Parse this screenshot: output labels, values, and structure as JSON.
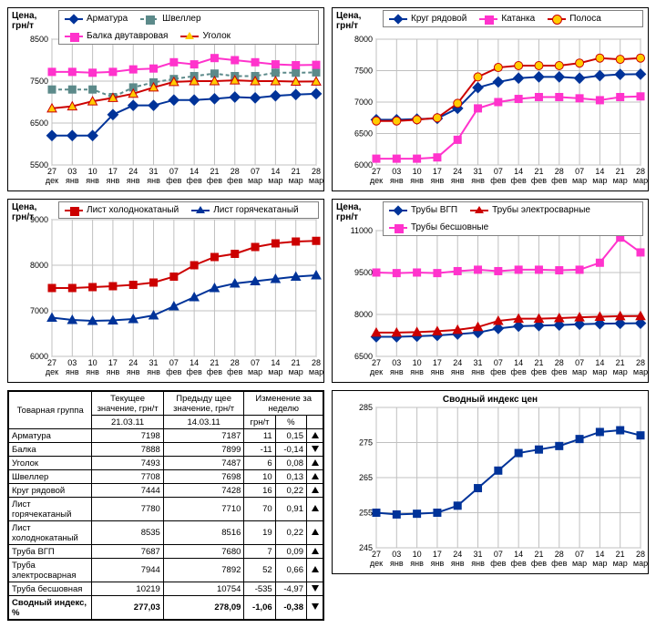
{
  "xlabels": [
    "27",
    "03",
    "10",
    "17",
    "24",
    "31",
    "07",
    "14",
    "21",
    "28",
    "07",
    "14",
    "21",
    "28"
  ],
  "xlabels2": [
    "дек",
    "янв",
    "янв",
    "янв",
    "янв",
    "янв",
    "фев",
    "фев",
    "фев",
    "фев",
    "мар",
    "мар",
    "мар",
    "мар"
  ],
  "chart1": {
    "ylabel": "Цена,\nгрн/т",
    "ylim": [
      5500,
      8500
    ],
    "yticks": [
      5500,
      6500,
      7500,
      8500
    ],
    "series": [
      {
        "name": "Арматура",
        "color": "#003399",
        "marker": "diamond",
        "values": [
          6200,
          6200,
          6200,
          6700,
          6920,
          6920,
          7050,
          7050,
          7080,
          7120,
          7100,
          7150,
          7180,
          7198
        ]
      },
      {
        "name": "Швеллер",
        "color": "#5c8a8a",
        "marker": "square",
        "dash": true,
        "values": [
          7300,
          7300,
          7300,
          7120,
          7350,
          7470,
          7550,
          7620,
          7680,
          7620,
          7620,
          7700,
          7700,
          7708
        ]
      },
      {
        "name": "Балка двутавровая",
        "color": "#ff33cc",
        "marker": "square",
        "values": [
          7720,
          7720,
          7700,
          7720,
          7780,
          7800,
          7950,
          7900,
          8050,
          8000,
          7950,
          7900,
          7880,
          7888
        ]
      },
      {
        "name": "Уголок",
        "color": "#cc0000",
        "marker": "triangle",
        "mfill": "#ffcc00",
        "values": [
          6850,
          6900,
          7020,
          7100,
          7200,
          7350,
          7480,
          7500,
          7500,
          7520,
          7500,
          7500,
          7490,
          7493
        ]
      }
    ]
  },
  "chart2": {
    "ylabel": "Цена,\nгрн/т",
    "ylim": [
      6000,
      8000
    ],
    "yticks": [
      6000,
      6500,
      7000,
      7500,
      8000
    ],
    "series": [
      {
        "name": "Круг рядовой",
        "color": "#003399",
        "marker": "diamond",
        "values": [
          6720,
          6720,
          6730,
          6740,
          6900,
          7230,
          7320,
          7380,
          7400,
          7400,
          7380,
          7420,
          7440,
          7444
        ]
      },
      {
        "name": "Катанка",
        "color": "#ff33cc",
        "marker": "square",
        "values": [
          6100,
          6100,
          6100,
          6120,
          6400,
          6900,
          7000,
          7050,
          7080,
          7080,
          7060,
          7030,
          7080,
          7090
        ]
      },
      {
        "name": "Полоса",
        "color": "#cc0000",
        "marker": "circle",
        "mfill": "#ffcc00",
        "values": [
          6700,
          6700,
          6720,
          6750,
          6980,
          7400,
          7550,
          7580,
          7580,
          7580,
          7620,
          7700,
          7680,
          7700
        ]
      }
    ]
  },
  "chart3": {
    "ylabel": "Цена,\nгрн/т",
    "ylim": [
      6000,
      9000
    ],
    "yticks": [
      6000,
      7000,
      8000,
      9000
    ],
    "series": [
      {
        "name": "Лист холоднокатаный",
        "color": "#cc0000",
        "marker": "square",
        "values": [
          7500,
          7500,
          7520,
          7540,
          7570,
          7620,
          7750,
          8000,
          8180,
          8250,
          8400,
          8480,
          8520,
          8535
        ]
      },
      {
        "name": "Лист горячекатаный",
        "color": "#003399",
        "marker": "triangle",
        "values": [
          6850,
          6800,
          6780,
          6790,
          6820,
          6900,
          7100,
          7300,
          7500,
          7600,
          7650,
          7700,
          7750,
          7780
        ]
      }
    ]
  },
  "chart4": {
    "ylabel": "Цена,\nгрн/т",
    "ylim": [
      6500,
      11000
    ],
    "yticks": [
      6500,
      8000,
      9500,
      11000
    ],
    "series": [
      {
        "name": "Трубы ВГП",
        "color": "#003399",
        "marker": "diamond",
        "values": [
          7200,
          7200,
          7220,
          7250,
          7300,
          7350,
          7500,
          7580,
          7600,
          7620,
          7650,
          7670,
          7680,
          7687
        ]
      },
      {
        "name": "Трубы электросварные",
        "color": "#cc0000",
        "marker": "triangle",
        "values": [
          7350,
          7350,
          7370,
          7400,
          7450,
          7550,
          7770,
          7850,
          7850,
          7870,
          7900,
          7920,
          7940,
          7944
        ]
      },
      {
        "name": "Трубы бесшовные",
        "color": "#ff33cc",
        "marker": "square",
        "values": [
          9500,
          9480,
          9500,
          9480,
          9550,
          9600,
          9550,
          9600,
          9600,
          9580,
          9600,
          9850,
          10750,
          10219
        ]
      }
    ]
  },
  "chart6": {
    "title": "Сводный индекс цен",
    "ylim": [
      245,
      285
    ],
    "yticks": [
      245,
      255,
      265,
      275,
      285
    ],
    "series": [
      {
        "name": "index",
        "color": "#003399",
        "marker": "square",
        "values": [
          255,
          254.5,
          254.7,
          255,
          257,
          262,
          267,
          272,
          273,
          274,
          276,
          278,
          278.5,
          277.03
        ]
      }
    ]
  },
  "table": {
    "headers": {
      "c1": "Товарная группа",
      "c2": "Текущее значение, грн/т",
      "c3": "Предыду щее значение, грн/т",
      "c4": "Изменение за неделю"
    },
    "subheaders": {
      "d1": "21.03.11",
      "d2": "14.03.11",
      "d3": "грн/т",
      "d4": "%"
    },
    "rows": [
      {
        "name": "Арматура",
        "cur": "7198",
        "prev": "7187",
        "d": "11",
        "p": "0,15",
        "dir": "up"
      },
      {
        "name": "Балка",
        "cur": "7888",
        "prev": "7899",
        "d": "-11",
        "p": "-0,14",
        "dir": "down"
      },
      {
        "name": "Уголок",
        "cur": "7493",
        "prev": "7487",
        "d": "6",
        "p": "0,08",
        "dir": "up"
      },
      {
        "name": "Швеллер",
        "cur": "7708",
        "prev": "7698",
        "d": "10",
        "p": "0,13",
        "dir": "up"
      },
      {
        "name": "Круг рядовой",
        "cur": "7444",
        "prev": "7428",
        "d": "16",
        "p": "0,22",
        "dir": "up"
      },
      {
        "name": "Лист горячекатаный",
        "cur": "7780",
        "prev": "7710",
        "d": "70",
        "p": "0,91",
        "dir": "up"
      },
      {
        "name": "Лист холоднокатаный",
        "cur": "8535",
        "prev": "8516",
        "d": "19",
        "p": "0,22",
        "dir": "up"
      },
      {
        "name": "Труба ВГП",
        "cur": "7687",
        "prev": "7680",
        "d": "7",
        "p": "0,09",
        "dir": "up"
      },
      {
        "name": "Труба электросварная",
        "cur": "7944",
        "prev": "7892",
        "d": "52",
        "p": "0,66",
        "dir": "up"
      },
      {
        "name": "Труба бесшовная",
        "cur": "10219",
        "prev": "10754",
        "d": "-535",
        "p": "-4,97",
        "dir": "down"
      }
    ],
    "summary": {
      "name": "Сводный индекс, %",
      "cur": "277,03",
      "prev": "278,09",
      "d": "-1,06",
      "p": "-0,38",
      "dir": "down"
    }
  }
}
